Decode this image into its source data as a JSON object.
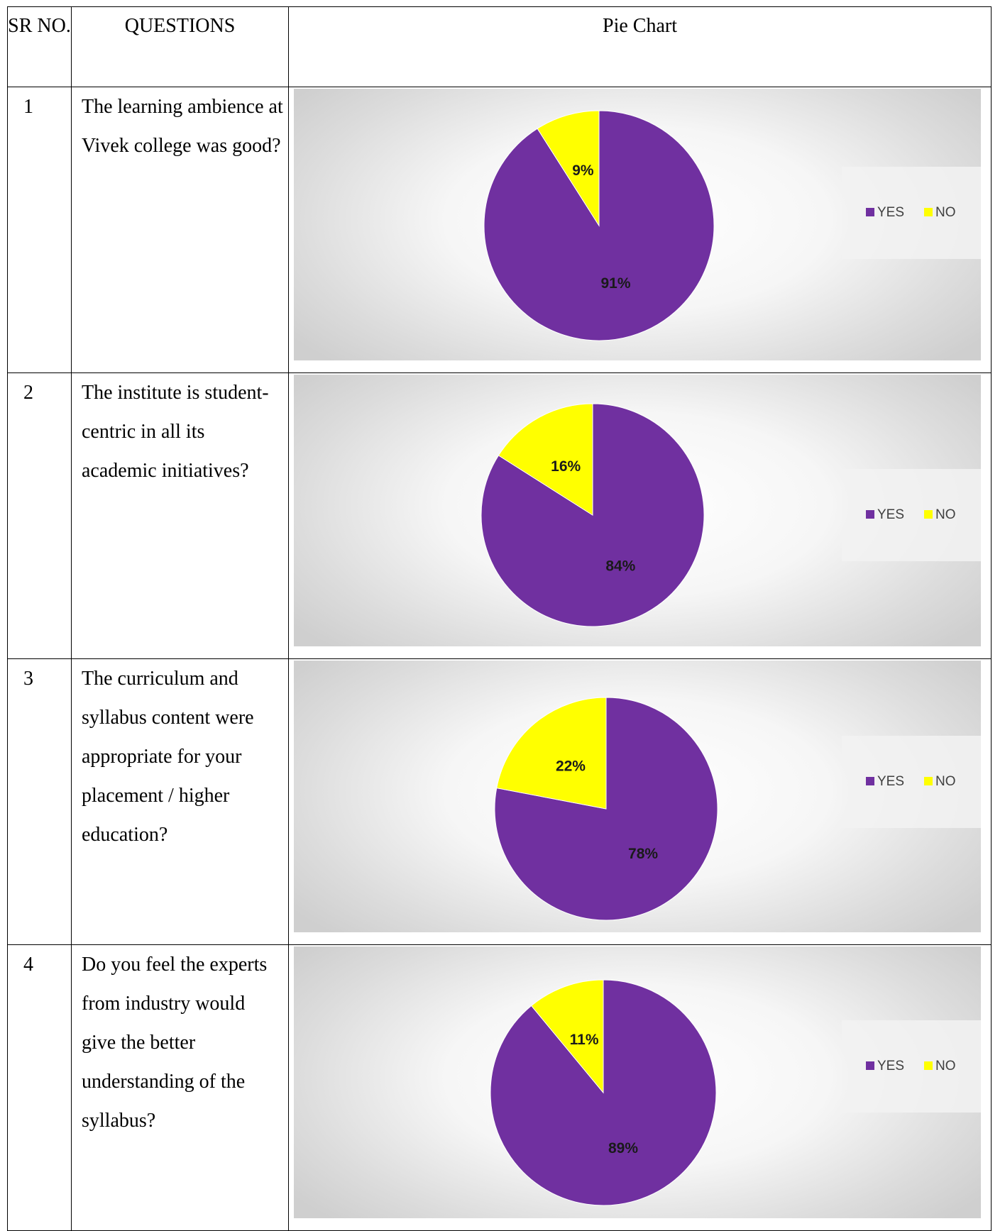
{
  "table": {
    "header": {
      "sr_no": "SR NO.",
      "questions": "QUESTIONS",
      "pie_chart": "Pie Chart"
    }
  },
  "colors": {
    "yes": "#7030A0",
    "no": "#FFFF00"
  },
  "legend_labels": {
    "yes": "YES",
    "no": "NO"
  },
  "rows": [
    {
      "sr": "1",
      "question": "The learning ambience at Vivek college was good?"
    },
    {
      "sr": "2",
      "question": "The institute is student-centric in all its academic initiatives?"
    },
    {
      "sr": "3",
      "question": "The curriculum and syllabus content were appropriate for your placement / higher education?"
    },
    {
      "sr": "4",
      "question": "Do you feel the experts from industry would give the better understanding of the syllabus?"
    }
  ],
  "chart_data": [
    {
      "type": "pie",
      "categories": [
        "YES",
        "NO"
      ],
      "values": [
        91,
        9
      ],
      "labels": [
        "91%",
        "9%"
      ],
      "legend": [
        "YES",
        "NO"
      ],
      "legend_position": "right"
    },
    {
      "type": "pie",
      "categories": [
        "YES",
        "NO"
      ],
      "values": [
        84,
        16
      ],
      "labels": [
        "84%",
        "16%"
      ],
      "legend": [
        "YES",
        "NO"
      ],
      "legend_position": "right"
    },
    {
      "type": "pie",
      "categories": [
        "YES",
        "NO"
      ],
      "values": [
        78,
        22
      ],
      "labels": [
        "78%",
        "22%"
      ],
      "legend": [
        "YES",
        "NO"
      ],
      "legend_position": "right"
    },
    {
      "type": "pie",
      "categories": [
        "YES",
        "NO"
      ],
      "values": [
        89,
        11
      ],
      "labels": [
        "89%",
        "11%"
      ],
      "legend": [
        "YES",
        "NO"
      ],
      "legend_position": "right"
    }
  ]
}
